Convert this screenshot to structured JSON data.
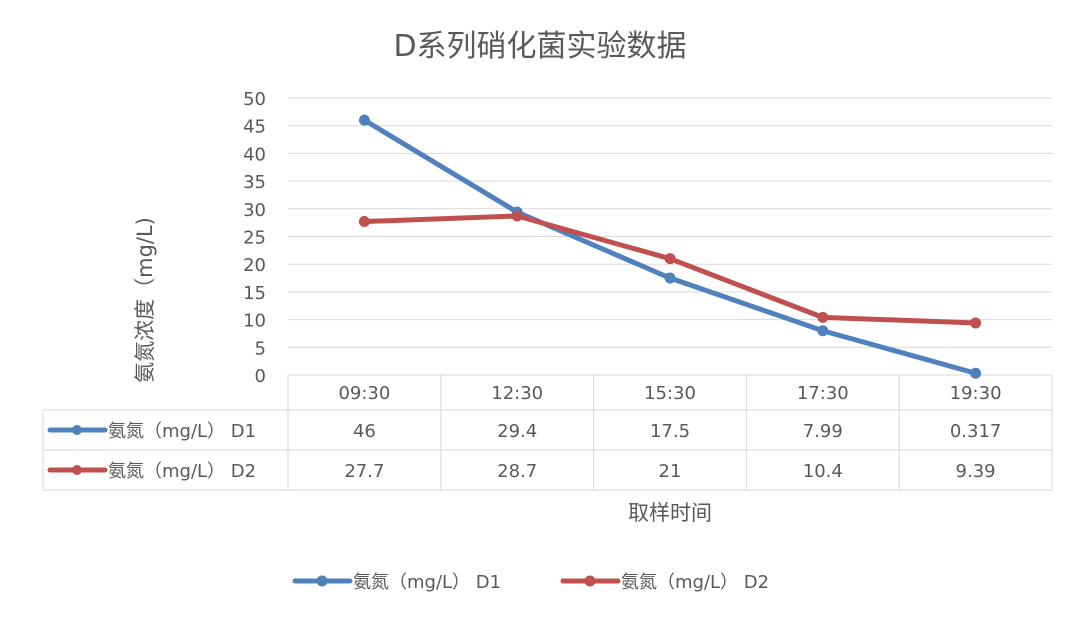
{
  "chart_data": {
    "type": "line",
    "title": "D系列硝化菌实验数据",
    "xlabel": "取样时间",
    "ylabel": "氨氮浓度（mg/L)",
    "categories": [
      "09:30",
      "12:30",
      "15:30",
      "17:30",
      "19:30"
    ],
    "ylim": [
      0,
      50
    ],
    "yticks": [
      0,
      5,
      10,
      15,
      20,
      25,
      30,
      35,
      40,
      45,
      50
    ],
    "grid": true,
    "legend": "bottom",
    "data_table": true,
    "series": [
      {
        "name": "氨氮（mg/L） D1",
        "values": [
          46,
          29.4,
          17.5,
          7.99,
          0.317
        ],
        "labels": [
          "46",
          "29.4",
          "17.5",
          "7.99",
          "0.317"
        ],
        "color": "#4f81bd"
      },
      {
        "name": "氨氮（mg/L） D2",
        "values": [
          27.7,
          28.7,
          21,
          10.4,
          9.39
        ],
        "labels": [
          "27.7",
          "28.7",
          "21",
          "10.4",
          "9.39"
        ],
        "color": "#c0504d"
      }
    ]
  }
}
